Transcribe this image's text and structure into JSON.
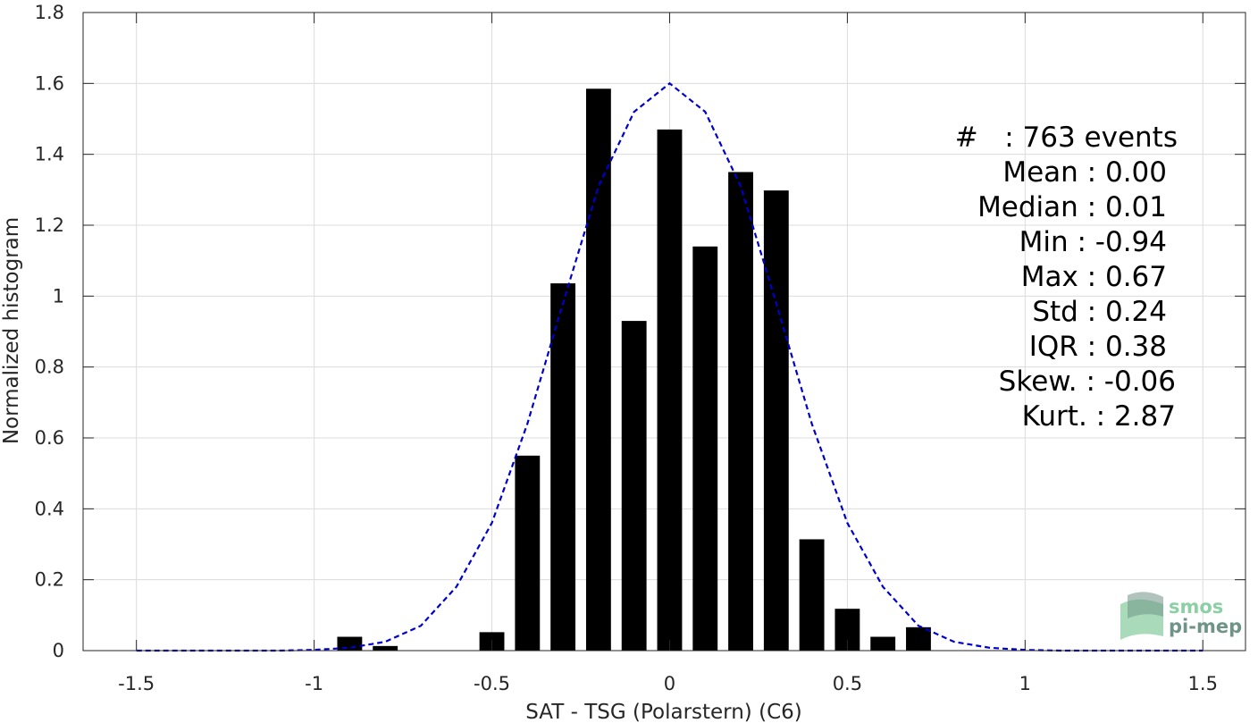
{
  "chart_data": {
    "type": "bar",
    "xlabel": "SAT - TSG (Polarstern) (C6)",
    "ylabel": "Normalized histogram",
    "xlim": [
      -1.65,
      1.62
    ],
    "ylim": [
      0,
      1.8
    ],
    "grid": true,
    "xticks": [
      -1.5,
      -1,
      -0.5,
      0,
      0.5,
      1,
      1.5
    ],
    "xtick_labels": [
      "-1.5",
      "-1",
      "-0.5",
      "0",
      "0.5",
      "1",
      "1.5"
    ],
    "yticks": [
      0,
      0.2,
      0.4,
      0.6,
      0.8,
      1,
      1.2,
      1.4,
      1.6,
      1.8
    ],
    "ytick_labels": [
      "0",
      "0.2",
      "0.4",
      "0.6",
      "0.8",
      "1",
      "1.2",
      "1.4",
      "1.6",
      "1.8"
    ],
    "bar_width": 0.07,
    "bars": {
      "x": [
        -0.9,
        -0.8,
        -0.5,
        -0.4,
        -0.3,
        -0.2,
        -0.1,
        0.0,
        0.1,
        0.2,
        0.3,
        0.4,
        0.5,
        0.6,
        0.7
      ],
      "values": [
        0.039,
        0.013,
        0.052,
        0.55,
        1.036,
        1.585,
        0.93,
        1.47,
        1.14,
        1.35,
        1.298,
        0.314,
        0.118,
        0.039,
        0.066
      ],
      "color": "#000000"
    },
    "fit_curve": {
      "style": "dashed",
      "color": "#0000cc",
      "x": [
        -1.5,
        -1.4,
        -1.3,
        -1.2,
        -1.1,
        -1.0,
        -0.9,
        -0.8,
        -0.7,
        -0.6,
        -0.5,
        -0.4,
        -0.3,
        -0.2,
        -0.1,
        0.0,
        0.1,
        0.2,
        0.3,
        0.4,
        0.5,
        0.6,
        0.7,
        0.8,
        0.9,
        1.0,
        1.1,
        1.2,
        1.3,
        1.4,
        1.5
      ],
      "y": [
        0.0,
        0.0,
        0.0,
        0.0,
        0.0,
        0.002,
        0.008,
        0.025,
        0.07,
        0.18,
        0.36,
        0.64,
        0.98,
        1.31,
        1.52,
        1.6,
        1.52,
        1.31,
        0.98,
        0.64,
        0.36,
        0.18,
        0.07,
        0.025,
        0.008,
        0.002,
        0.0,
        0.0,
        0.0,
        0.0,
        0.0
      ]
    },
    "annotations": [
      "#   : 763 events",
      "Mean : 0.00",
      "Median : 0.01",
      "Min : -0.94",
      "Max : 0.67",
      "Std : 0.24",
      "IQR : 0.38",
      "Skew. : -0.06",
      "Kurt. : 2.87"
    ]
  },
  "logo": {
    "line1": "smos",
    "line2": "pi-mep",
    "color_light": "#8ccfa4",
    "color_dark": "#6f9487"
  }
}
